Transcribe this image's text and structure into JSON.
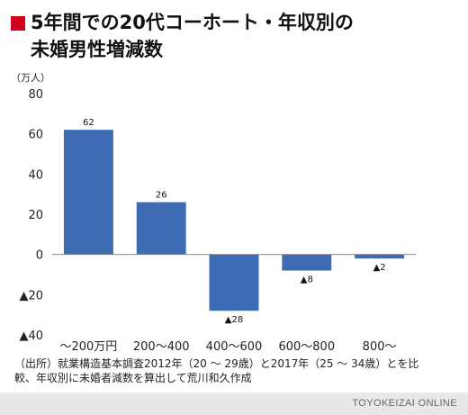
{
  "title_line1": "5年間での20代コーホート・年収別の",
  "title_line2": "未婚男性増減数",
  "footnote_line1": "（出所）就業構造基本調査2012年（20 ～ 29歳）と2017年（25 ～ 34歳）とを比",
  "footnote_line2": "較、年収別に未婚者減数を算出して荒川和久作成",
  "brand": "TOYOKEIZAI ONLINE",
  "chart_data": {
    "type": "bar",
    "ylabel": "（万人）",
    "ylim": [
      -40,
      80
    ],
    "yticks": [
      80,
      60,
      40,
      20,
      0,
      -20,
      -40
    ],
    "ytick_labels": [
      "80",
      "60",
      "40",
      "20",
      "0",
      "▲20",
      "▲40"
    ],
    "categories": [
      "～200万円",
      "200～400",
      "400～600",
      "600～800",
      "800～"
    ],
    "values": [
      62,
      26,
      -28,
      -8,
      -2
    ],
    "value_labels": [
      "62",
      "26",
      "▲28",
      "▲8",
      "▲2"
    ],
    "bar_color": "#3d6cb5",
    "grid": false
  }
}
